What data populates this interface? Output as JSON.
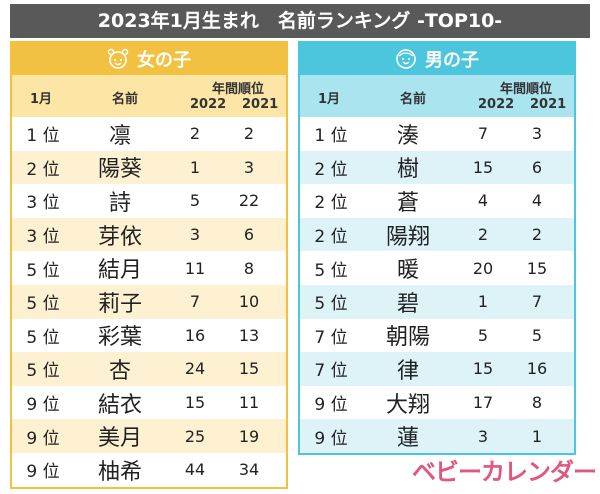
{
  "title": "2023年1月生まれ　名前ランキング -TOP10-",
  "headers": {
    "month": "1月",
    "name": "名前",
    "annual": "年間順位",
    "y2022": "2022",
    "y2021": "2021"
  },
  "girls": {
    "label": "女の子",
    "icon": "girl-face-icon",
    "color": "#f3c142",
    "rows": [
      {
        "rank": "1 位",
        "name": "凛",
        "r2022": "2",
        "r2021": "2"
      },
      {
        "rank": "2 位",
        "name": "陽葵",
        "r2022": "1",
        "r2021": "3"
      },
      {
        "rank": "3 位",
        "name": "詩",
        "r2022": "5",
        "r2021": "22"
      },
      {
        "rank": "3 位",
        "name": "芽依",
        "r2022": "3",
        "r2021": "6"
      },
      {
        "rank": "5 位",
        "name": "結月",
        "r2022": "11",
        "r2021": "8"
      },
      {
        "rank": "5 位",
        "name": "莉子",
        "r2022": "7",
        "r2021": "10"
      },
      {
        "rank": "5 位",
        "name": "彩葉",
        "r2022": "16",
        "r2021": "13"
      },
      {
        "rank": "5 位",
        "name": "杏",
        "r2022": "24",
        "r2021": "15"
      },
      {
        "rank": "9 位",
        "name": "結衣",
        "r2022": "15",
        "r2021": "11"
      },
      {
        "rank": "9 位",
        "name": "美月",
        "r2022": "25",
        "r2021": "19"
      },
      {
        "rank": "9 位",
        "name": "柚希",
        "r2022": "44",
        "r2021": "34"
      }
    ]
  },
  "boys": {
    "label": "男の子",
    "icon": "boy-face-icon",
    "color": "#4cc6dc",
    "rows": [
      {
        "rank": "1 位",
        "name": "湊",
        "r2022": "7",
        "r2021": "3"
      },
      {
        "rank": "2 位",
        "name": "樹",
        "r2022": "15",
        "r2021": "6"
      },
      {
        "rank": "2 位",
        "name": "蒼",
        "r2022": "4",
        "r2021": "4"
      },
      {
        "rank": "2 位",
        "name": "陽翔",
        "r2022": "2",
        "r2021": "2"
      },
      {
        "rank": "5 位",
        "name": "暖",
        "r2022": "20",
        "r2021": "15"
      },
      {
        "rank": "5 位",
        "name": "碧",
        "r2022": "1",
        "r2021": "7"
      },
      {
        "rank": "7 位",
        "name": "朝陽",
        "r2022": "5",
        "r2021": "5"
      },
      {
        "rank": "7 位",
        "name": "律",
        "r2022": "15",
        "r2021": "16"
      },
      {
        "rank": "9 位",
        "name": "大翔",
        "r2022": "17",
        "r2021": "8"
      },
      {
        "rank": "9 位",
        "name": "蓮",
        "r2022": "3",
        "r2021": "1"
      }
    ]
  },
  "logo": "ベビーカレンダー"
}
